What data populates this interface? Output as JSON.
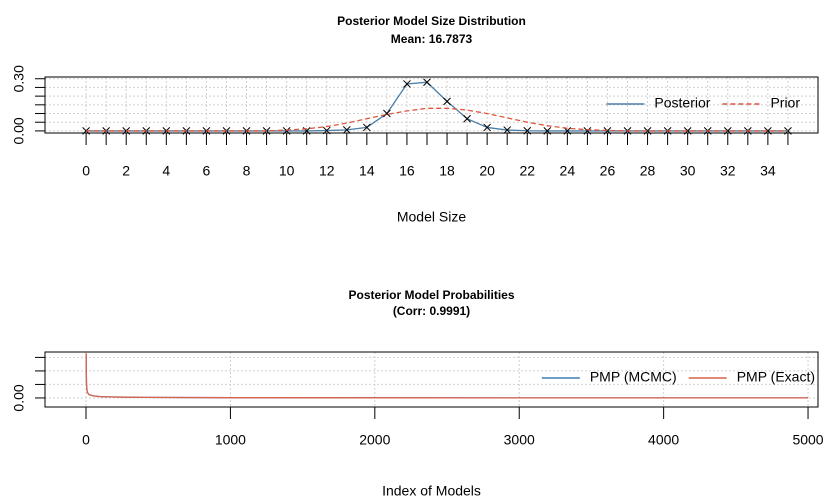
{
  "chart_data": [
    {
      "type": "line",
      "title": "Posterior Model Size Distribution",
      "subtitle": "Mean: 16.7873",
      "x_label": "Model Size",
      "x": [
        0,
        1,
        2,
        3,
        4,
        5,
        6,
        7,
        8,
        9,
        10,
        11,
        12,
        13,
        14,
        15,
        16,
        17,
        18,
        19,
        20,
        21,
        22,
        23,
        24,
        25,
        26,
        27,
        28,
        29,
        30,
        31,
        32,
        33,
        34,
        35
      ],
      "series": [
        {
          "name": "Posterior",
          "color": "#4a7fa8",
          "line_style": "solid",
          "marker": "x",
          "values": [
            0,
            0,
            0,
            0,
            0,
            0,
            0,
            0,
            0,
            0,
            0,
            0,
            0.002,
            0.006,
            0.02,
            0.1,
            0.27,
            0.28,
            0.17,
            0.07,
            0.02,
            0.005,
            0.001,
            0,
            0,
            0,
            0,
            0,
            0,
            0,
            0,
            0,
            0,
            0,
            0,
            0
          ]
        },
        {
          "name": "Prior",
          "color": "#e0553f",
          "line_style": "dashed",
          "marker": "none",
          "values": [
            0,
            0,
            0,
            0,
            0,
            0,
            0,
            0,
            0,
            0,
            0.005,
            0.012,
            0.025,
            0.045,
            0.07,
            0.095,
            0.115,
            0.13,
            0.13,
            0.12,
            0.1,
            0.075,
            0.05,
            0.03,
            0.015,
            0.007,
            0.003,
            0,
            0,
            0,
            0,
            0,
            0,
            0,
            0,
            0
          ]
        }
      ],
      "xlim": [
        -2.05,
        36.5
      ],
      "ylim": [
        -0.012,
        0.31
      ],
      "xticks": [
        0,
        2,
        4,
        6,
        8,
        10,
        12,
        14,
        16,
        18,
        20,
        22,
        24,
        26,
        28,
        30,
        32,
        34
      ],
      "minor_xticks": [
        1,
        3,
        5,
        7,
        9,
        11,
        13,
        15,
        17,
        19,
        21,
        23,
        25,
        27,
        29,
        31,
        33,
        35
      ],
      "yticks": [
        {
          "value": 0,
          "label": "0.00"
        },
        {
          "value": 0.3,
          "label": "0.30"
        }
      ],
      "minor_yticks": [
        0.05,
        0.1,
        0.15,
        0.2,
        0.25
      ],
      "grid": true,
      "legend": "top-right"
    },
    {
      "type": "line",
      "title": "Posterior Model Probabilities",
      "subtitle": "(Corr: 0.9991)",
      "x_label": "Index of Models",
      "x": [
        1,
        2,
        3,
        5,
        10,
        20,
        50,
        100,
        200,
        400,
        1000,
        2000,
        3000,
        4000,
        5000
      ],
      "series": [
        {
          "name": "PMP (MCMC)",
          "color": "#3f7fb5",
          "line_style": "solid",
          "marker": "none",
          "values": [
            0.033,
            0.02,
            0.012,
            0.007,
            0.004,
            0.0025,
            0.0015,
            0.001,
            0.0007,
            0.0004,
            0.0002,
            0.0001,
            7e-05,
            5e-05,
            3e-05
          ]
        },
        {
          "name": "PMP (Exact)",
          "color": "#d9634c",
          "line_style": "solid",
          "marker": "none",
          "values": [
            0.033,
            0.02,
            0.012,
            0.007,
            0.004,
            0.0025,
            0.0015,
            0.001,
            0.0007,
            0.0004,
            0.0002,
            0.0001,
            7e-05,
            5e-05,
            3e-05
          ]
        }
      ],
      "xlim": [
        -284,
        5069
      ],
      "ylim": [
        -0.0067,
        0.034
      ],
      "xticks": [
        0,
        1000,
        2000,
        3000,
        4000,
        5000
      ],
      "minor_xticks": [],
      "yticks": [
        {
          "value": 0,
          "label": "0.00"
        }
      ],
      "minor_yticks": [
        0.01,
        0.02,
        0.03
      ],
      "grid": true,
      "legend": "top-right"
    }
  ]
}
